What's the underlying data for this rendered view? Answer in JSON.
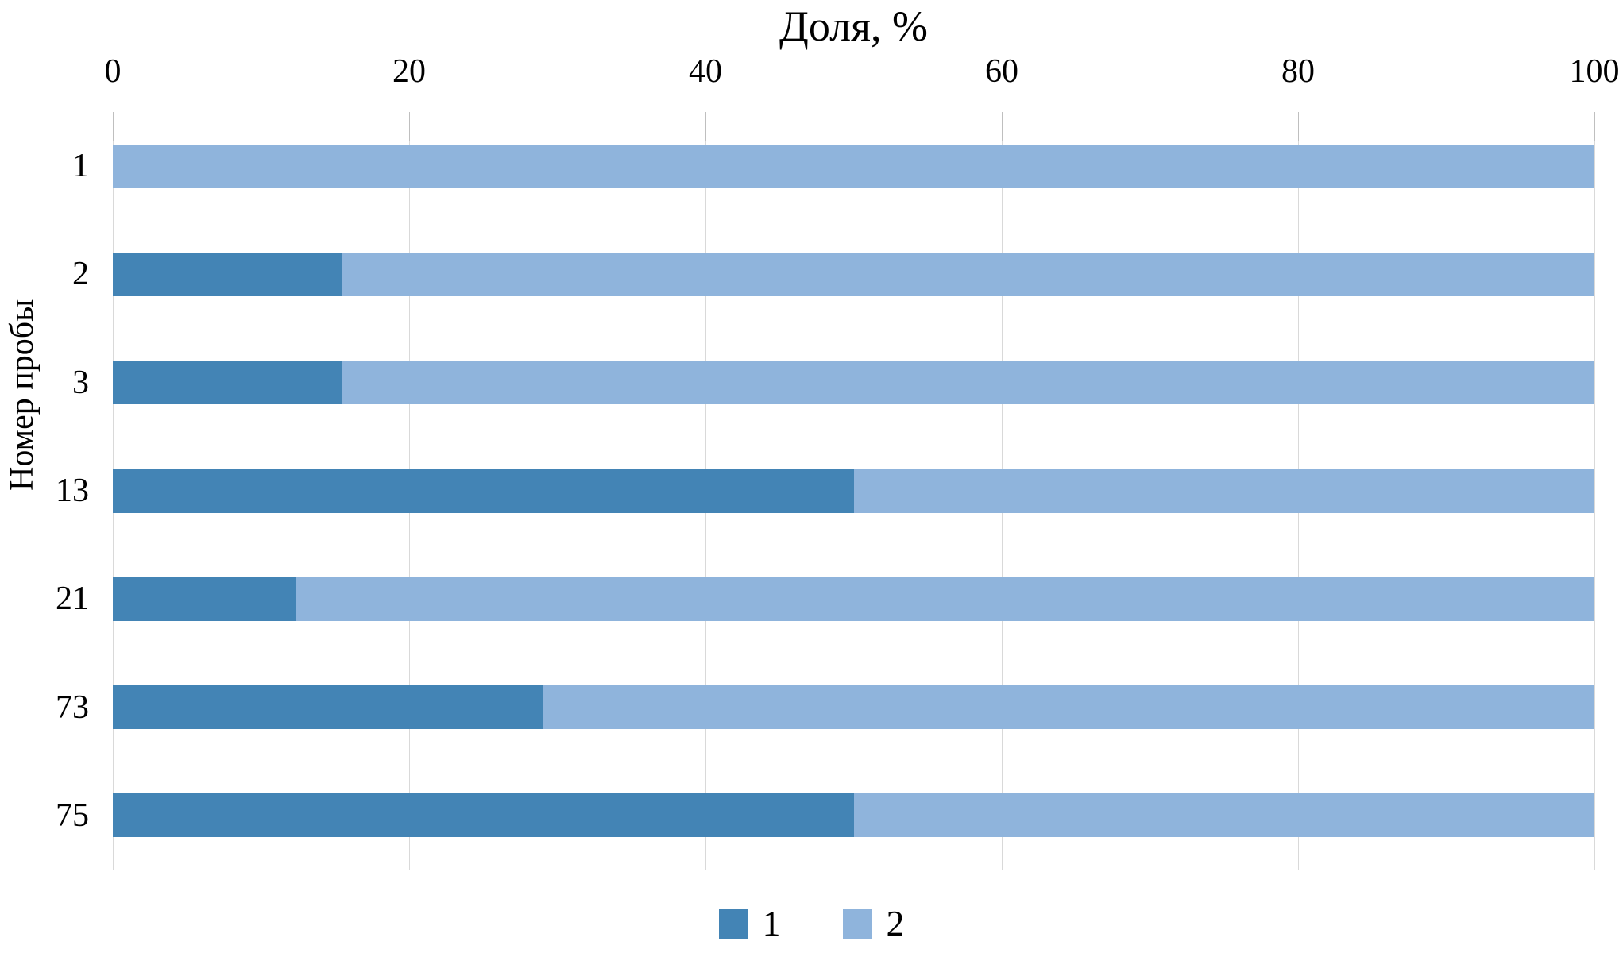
{
  "chart_data": {
    "type": "bar",
    "orientation": "horizontal-stacked",
    "title": "Доля, %",
    "xlabel": "",
    "ylabel": "Номер пробы",
    "categories": [
      "1",
      "2",
      "3",
      "13",
      "21",
      "73",
      "75"
    ],
    "series": [
      {
        "name": "1",
        "color": "#4384B5",
        "values": [
          0,
          15.5,
          15.5,
          50,
          12.4,
          29,
          50
        ]
      },
      {
        "name": "2",
        "color": "#8FB4DC",
        "values": [
          100,
          84.5,
          84.5,
          50,
          87.6,
          71,
          50
        ]
      }
    ],
    "xlim": [
      0,
      100
    ],
    "xticks": [
      0,
      20,
      40,
      60,
      80,
      100
    ],
    "grid": true,
    "gridline_color": "#D9D9D9",
    "tick_mark_color": "#BFBFBF",
    "legend": [
      "1",
      "2"
    ],
    "legend_position": "bottom",
    "axis_side": "top"
  }
}
